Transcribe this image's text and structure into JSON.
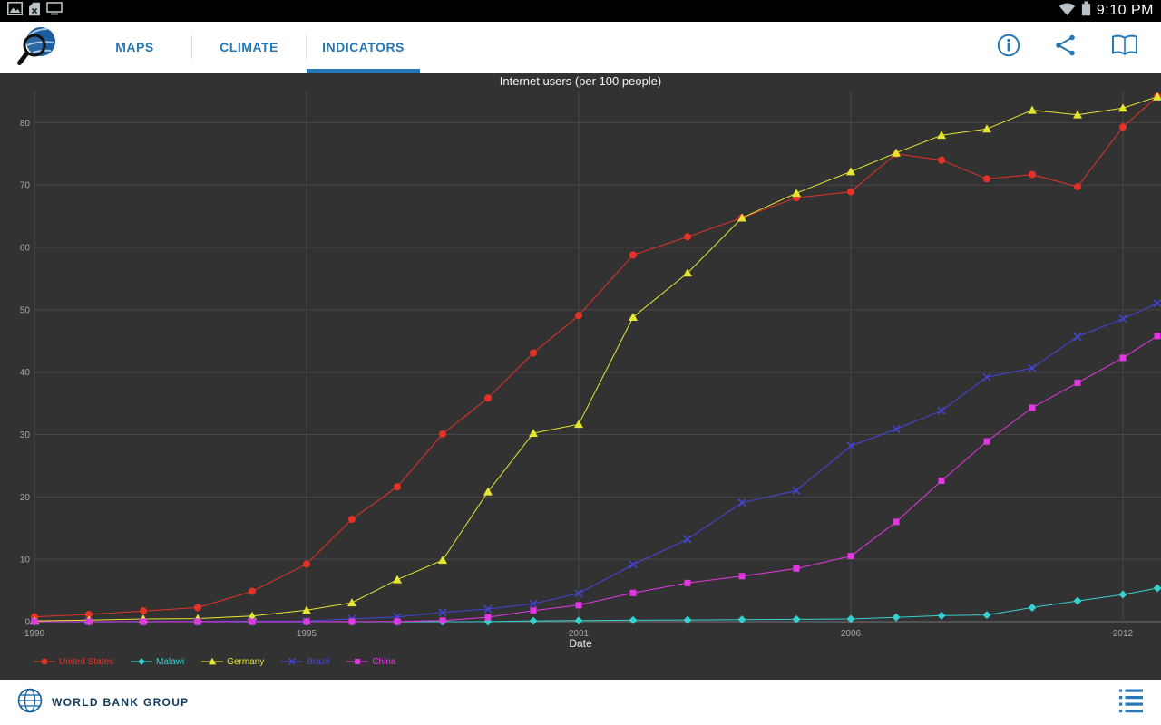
{
  "status_bar": {
    "time": "9:10 PM"
  },
  "toolbar": {
    "tabs": [
      {
        "label": "MAPS",
        "active": false
      },
      {
        "label": "CLIMATE",
        "active": false
      },
      {
        "label": "INDICATORS",
        "active": true
      }
    ]
  },
  "icons": {
    "status_left": [
      "screenshot-icon",
      "no-sim-icon",
      "display-icon"
    ],
    "status_right": [
      "wifi-icon",
      "battery-icon"
    ],
    "toolbar_logo": "app-globe-magnifier-icon",
    "toolbar_actions": [
      "info-icon",
      "share-icon",
      "book-icon"
    ],
    "footer": [
      "world-bank-globe-icon",
      "legend-list-icon"
    ]
  },
  "colors": {
    "accent": "#2577b5",
    "chart_background": "#323232",
    "grid_line": "#474747",
    "tick_text": "#a8a8a8"
  },
  "chart_data": {
    "type": "line",
    "title": "Internet users (per 100 people)",
    "xlabel": "Date",
    "ylabel": "",
    "grid": true,
    "legend_position": "bottom-left",
    "ylim": [
      0,
      85
    ],
    "y_ticks": [
      0,
      10,
      20,
      30,
      40,
      50,
      60,
      70,
      80
    ],
    "x_ticks": [
      1990,
      1995,
      2001,
      2006,
      2012
    ],
    "x": [
      1990,
      1991,
      1992,
      1993,
      1994,
      1995,
      1996,
      1997,
      1998,
      1999,
      2000,
      2001,
      2002,
      2003,
      2004,
      2005,
      2006,
      2007,
      2008,
      2009,
      2010,
      2011,
      2012,
      2013
    ],
    "series": [
      {
        "name": "United States",
        "color": "#e53228",
        "marker": "circle",
        "values": [
          0.78,
          1.16,
          1.72,
          2.27,
          4.86,
          9.24,
          16.42,
          21.62,
          30.09,
          35.85,
          43.08,
          49.08,
          58.79,
          61.7,
          64.76,
          67.97,
          68.93,
          75.0,
          74.0,
          71.0,
          71.69,
          69.73,
          79.3,
          84.2
        ]
      },
      {
        "name": "Malawi",
        "color": "#35d0d0",
        "marker": "diamond",
        "values": [
          0,
          0,
          0,
          0,
          0,
          0,
          0.0007,
          0.0015,
          0.0044,
          0.0113,
          0.13,
          0.17,
          0.23,
          0.28,
          0.34,
          0.38,
          0.43,
          0.7,
          0.97,
          1.07,
          2.26,
          3.33,
          4.35,
          5.38
        ]
      },
      {
        "name": "Germany",
        "color": "#e5e532",
        "marker": "triangle",
        "values": [
          0.13,
          0.25,
          0.44,
          0.49,
          0.91,
          1.84,
          3.04,
          6.74,
          9.87,
          20.84,
          30.22,
          31.65,
          48.82,
          55.9,
          64.73,
          68.71,
          72.16,
          75.16,
          78.0,
          79.0,
          82.0,
          81.27,
          82.35,
          84.17
        ]
      },
      {
        "name": "Brazil",
        "color": "#4545dd",
        "marker": "x",
        "values": [
          0.0,
          0.01,
          0.03,
          0.06,
          0.12,
          0.1,
          0.45,
          0.77,
          1.5,
          2.04,
          2.87,
          4.53,
          9.15,
          13.21,
          19.07,
          21.02,
          28.18,
          30.88,
          33.83,
          39.22,
          40.65,
          45.69,
          48.56,
          51.04
        ]
      },
      {
        "name": "China",
        "color": "#e437e4",
        "marker": "square",
        "values": [
          0,
          0,
          0,
          0,
          0.001,
          0.005,
          0.013,
          0.027,
          0.17,
          0.71,
          1.78,
          2.64,
          4.6,
          6.2,
          7.3,
          8.52,
          10.52,
          16.0,
          22.6,
          28.9,
          34.3,
          38.3,
          42.3,
          45.8
        ]
      }
    ]
  },
  "footer": {
    "brand": "WORLD BANK GROUP"
  }
}
